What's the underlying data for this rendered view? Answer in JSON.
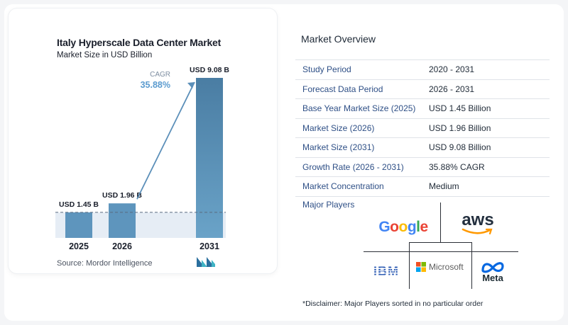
{
  "chart_data": {
    "type": "bar",
    "title": "Italy Hyperscale Data Center Market",
    "subtitle": "Market Size in USD Billion",
    "categories": [
      "2025",
      "2026",
      "2031"
    ],
    "values": [
      1.45,
      1.96,
      9.08
    ],
    "data_labels": [
      "USD 1.45 B",
      "USD 1.96 B",
      "USD 9.08 B"
    ],
    "ylim": [
      0,
      9.5
    ],
    "grid": false,
    "annotation": {
      "label": "CAGR",
      "value": "35.88%"
    },
    "colors": {
      "bar": "#5e95bd",
      "bar_dark": "#4a7da3",
      "bar_tall": "#6aa3c8",
      "arrow": "#5b8fb9",
      "cagr": "#5b9bcf",
      "band": "#e6edf5"
    }
  },
  "source": "Source:  Mordor Intelligence",
  "logo_icon": "mordor-intelligence-logo-icon",
  "overview": {
    "title": "Market Overview",
    "rows": [
      {
        "label": "Study Period",
        "value": "2020 - 2031"
      },
      {
        "label": "Forecast Data Period",
        "value": "2026 - 2031"
      },
      {
        "label": "Base Year Market Size (2025)",
        "value": "USD 1.45 Billion"
      },
      {
        "label": "Market Size (2026)",
        "value": "USD 1.96 Billion"
      },
      {
        "label": "Market Size (2031)",
        "value": "USD 9.08 Billion"
      },
      {
        "label": "Growth Rate (2026 - 2031)",
        "value": "35.88% CAGR"
      },
      {
        "label": "Market Concentration",
        "value": "Medium"
      }
    ]
  },
  "players": {
    "title": "Major Players",
    "google": "Google",
    "aws": "aws",
    "ibm": "IBM",
    "microsoft": "Microsoft",
    "meta": "Meta"
  },
  "disclaimer": "*Disclaimer: Major Players sorted in no particular order"
}
